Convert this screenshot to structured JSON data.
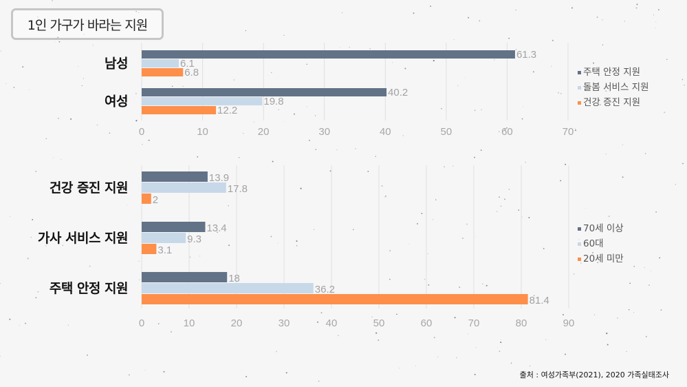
{
  "title": "1인 가구가 바라는 지원",
  "source": "출처 : 여성가족부(2021), 2020 가족실태조사",
  "colors": {
    "dark": "#627287",
    "light": "#c7d8e9",
    "orange": "#fd8f4b"
  },
  "chart_data": [
    {
      "type": "bar",
      "orientation": "horizontal",
      "categories": [
        "남성",
        "여성"
      ],
      "series": [
        {
          "name": "주택 안정 지원",
          "values": [
            61.3,
            40.2
          ]
        },
        {
          "name": "돌봄 서비스 지원",
          "values": [
            6.1,
            19.8
          ]
        },
        {
          "name": "건강 증진 지원",
          "values": [
            6.8,
            12.2
          ]
        }
      ],
      "xlim": [
        0,
        70
      ],
      "xticks": [
        0,
        10,
        20,
        30,
        40,
        50,
        60,
        70
      ],
      "grid": true,
      "legend": "right"
    },
    {
      "type": "bar",
      "orientation": "horizontal",
      "categories": [
        "건강 증진 지원",
        "가사 서비스 지원",
        "주택 안정 지원"
      ],
      "series": [
        {
          "name": "70세 이상",
          "values": [
            13.9,
            13.4,
            18
          ]
        },
        {
          "name": "60대",
          "values": [
            17.8,
            9.3,
            36.2
          ]
        },
        {
          "name": "20세 미만",
          "values": [
            2,
            3.1,
            81.4
          ]
        }
      ],
      "xlim": [
        0,
        90
      ],
      "xticks": [
        0,
        10,
        20,
        30,
        40,
        50,
        60,
        70,
        80,
        90
      ],
      "grid": true,
      "legend": "right"
    }
  ]
}
